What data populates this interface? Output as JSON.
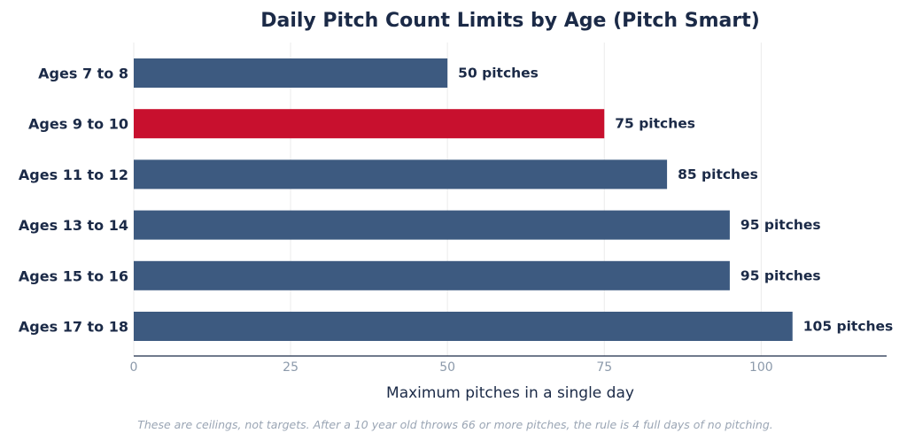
{
  "chart_data": {
    "type": "bar",
    "orientation": "horizontal",
    "title": "Daily Pitch Count Limits by Age (Pitch Smart)",
    "xlabel": "Maximum pitches in a single day",
    "ylabel": "",
    "categories": [
      "Ages 7 to 8",
      "Ages 9 to 10",
      "Ages 11 to 12",
      "Ages 13 to 14",
      "Ages 15 to 16",
      "Ages 17 to 18"
    ],
    "values": [
      50,
      75,
      85,
      95,
      95,
      105
    ],
    "value_labels": [
      "50 pitches",
      "75 pitches",
      "85 pitches",
      "95 pitches",
      "95 pitches",
      "105 pitches"
    ],
    "highlight_index": 1,
    "xlim": [
      0,
      120
    ],
    "xticks": [
      0,
      25,
      50,
      75,
      100
    ],
    "xtick_labels": [
      "0",
      "25",
      "50",
      "75",
      "100"
    ],
    "grid": "vertical",
    "legend": "none",
    "footnote": "These are ceilings, not targets. After a 10 year old throws 66 or more pitches, the rule is 4 full days of no pitching."
  },
  "colors": {
    "bar": "#3d5a80",
    "highlight": "#c8102e",
    "text": "#1b2a47",
    "tick_text": "#8c9aab",
    "grid": "#ebebeb",
    "axis": "#1b2a47",
    "footnote": "#9aa5b4"
  }
}
